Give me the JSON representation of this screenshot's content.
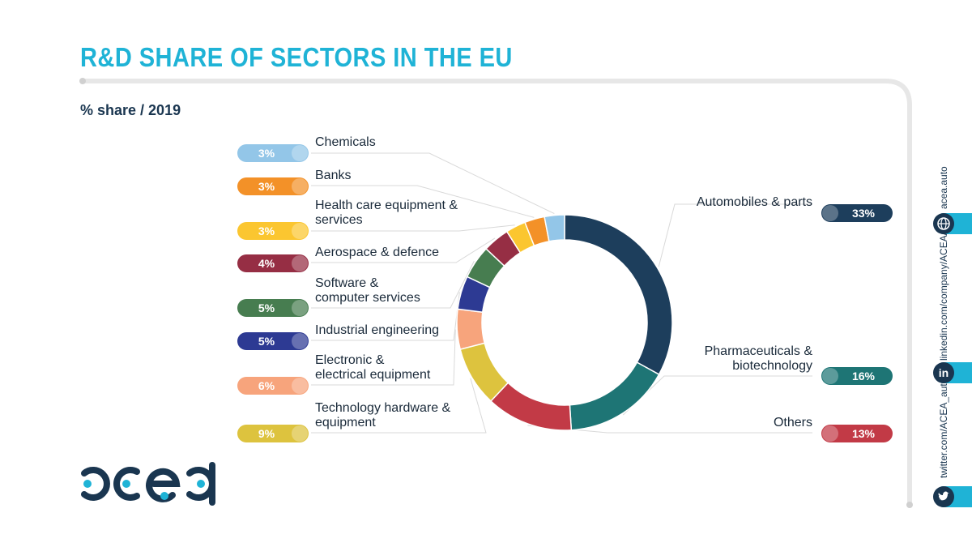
{
  "header": {
    "title": "R&D SHARE OF SECTORS IN THE EU",
    "subtitle": "% share / 2019"
  },
  "chart_data": {
    "type": "pie",
    "title": "R&D SHARE OF SECTORS IN THE EU",
    "subtitle": "% share / 2019",
    "slices": [
      {
        "label": "Automobiles & parts",
        "value": 33,
        "display": "33%",
        "color": "#1d3e5c"
      },
      {
        "label": "Pharmaceuticals & biotechnology",
        "value": 16,
        "display": "16%",
        "color": "#1e7575"
      },
      {
        "label": "Others",
        "value": 13,
        "display": "13%",
        "color": "#c23a46"
      },
      {
        "label": "Technology hardware & equipment",
        "value": 9,
        "display": "9%",
        "color": "#ddc33e"
      },
      {
        "label": "Electronic & electrical equipment",
        "value": 6,
        "display": "6%",
        "color": "#f7a47c"
      },
      {
        "label": "Industrial engineering",
        "value": 5,
        "display": "5%",
        "color": "#2d3a93"
      },
      {
        "label": "Software & computer services",
        "value": 5,
        "display": "5%",
        "color": "#477d50"
      },
      {
        "label": "Aerospace & defence",
        "value": 4,
        "display": "4%",
        "color": "#962e44"
      },
      {
        "label": "Health care equipment & services",
        "value": 3,
        "display": "3%",
        "color": "#fbc630"
      },
      {
        "label": "Banks",
        "value": 3,
        "display": "3%",
        "color": "#f39128"
      },
      {
        "label": "Chemicals",
        "value": 3,
        "display": "3%",
        "color": "#93c6e8"
      }
    ]
  },
  "labels": {
    "automobiles": [
      "Automobiles & parts"
    ],
    "pharma": [
      "Pharmaceuticals &",
      "biotechnology"
    ],
    "others": [
      "Others"
    ],
    "techhw": [
      "Technology hardware  &",
      "equipment"
    ],
    "electronic": [
      "Electronic &",
      "electrical equipment"
    ],
    "industrial": [
      "Industrial engineering"
    ],
    "software": [
      "Software &",
      "computer services"
    ],
    "aerospace": [
      "Aerospace & defence"
    ],
    "healthcare": [
      "Health care equipment &",
      "services"
    ],
    "banks": [
      "Banks"
    ],
    "chemicals": [
      "Chemicals"
    ]
  },
  "brand": {
    "logo_text": "acea",
    "accent": "#1fb3d6",
    "navy": "#1a3650"
  },
  "social": {
    "website": "acea.auto",
    "linkedin": "linkedin.com/company/ACEA/",
    "twitter": "twitter.com/ACEA_auto",
    "website_icon": "globe-icon",
    "linkedin_icon": "linkedin-icon",
    "twitter_icon": "twitter-icon"
  }
}
